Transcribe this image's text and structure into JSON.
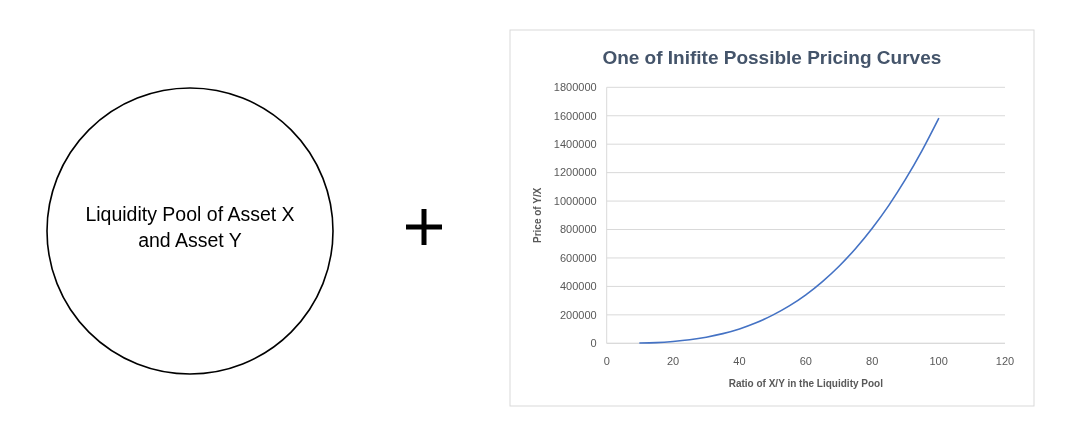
{
  "chart_data": [
    {
      "type": "other",
      "annotations": [
        "Liquidity Pool of Asset X and Asset Y"
      ]
    },
    {
      "type": "line",
      "title": "One of Inifite Possible Pricing Curves",
      "xlabel": "Ratio of X/Y in the Liquidity Pool",
      "ylabel": "Price of Y/X",
      "x": [
        10,
        15,
        20,
        25,
        30,
        35,
        40,
        45,
        50,
        55,
        60,
        65,
        70,
        75,
        80,
        85,
        90,
        95,
        100
      ],
      "series": [
        {
          "color": "#4472c4",
          "values": [
            2000,
            5000,
            13000,
            25000,
            43000,
            68000,
            101000,
            144000,
            198000,
            263000,
            341000,
            434000,
            542000,
            667000,
            809000,
            970000,
            1152000,
            1355000,
            1580000
          ]
        }
      ],
      "xlim": [
        0,
        120
      ],
      "xticks": [
        0,
        20,
        40,
        60,
        80,
        100,
        120
      ],
      "ylim": [
        0,
        1800000
      ],
      "yticks": [
        0,
        200000,
        400000,
        600000,
        800000,
        1000000,
        1200000,
        1400000,
        1600000,
        1800000
      ],
      "grid": "y"
    }
  ]
}
